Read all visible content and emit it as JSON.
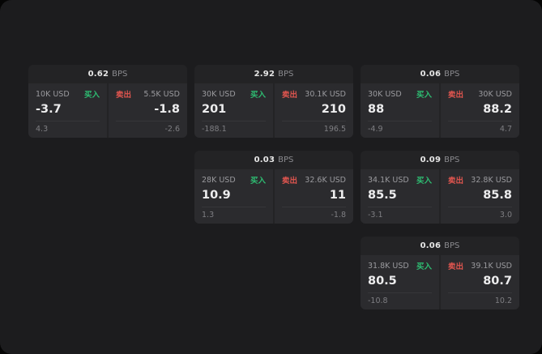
{
  "colors": {
    "buy-green": "#2ebd72",
    "sell-red": "#e0554f"
  },
  "cards": [
    {
      "bps_value": "0.62",
      "bps_unit": "BPS",
      "buy_size": "10K USD",
      "buy_label": "买入",
      "buy_price": "-3.7",
      "buy_sub": "4.3",
      "sell_label": "卖出",
      "sell_size": "5.5K USD",
      "sell_price": "-1.8",
      "sell_sub": "-2.6"
    },
    {
      "bps_value": "2.92",
      "bps_unit": "BPS",
      "buy_size": "30K USD",
      "buy_label": "买入",
      "buy_price": "201",
      "buy_sub": "-188.1",
      "sell_label": "卖出",
      "sell_size": "30.1K USD",
      "sell_price": "210",
      "sell_sub": "196.5"
    },
    {
      "bps_value": "0.06",
      "bps_unit": "BPS",
      "buy_size": "30K USD",
      "buy_label": "买入",
      "buy_price": "88",
      "buy_sub": "-4.9",
      "sell_label": "卖出",
      "sell_size": "30K USD",
      "sell_price": "88.2",
      "sell_sub": "4.7"
    },
    {
      "bps_value": "0.03",
      "bps_unit": "BPS",
      "buy_size": "28K USD",
      "buy_label": "买入",
      "buy_price": "10.9",
      "buy_sub": "1.3",
      "sell_label": "卖出",
      "sell_size": "32.6K USD",
      "sell_price": "11",
      "sell_sub": "-1.8"
    },
    {
      "bps_value": "0.09",
      "bps_unit": "BPS",
      "buy_size": "34.1K USD",
      "buy_label": "买入",
      "buy_price": "85.5",
      "buy_sub": "-3.1",
      "sell_label": "卖出",
      "sell_size": "32.8K USD",
      "sell_price": "85.8",
      "sell_sub": "3.0"
    },
    {
      "bps_value": "0.06",
      "bps_unit": "BPS",
      "buy_size": "31.8K USD",
      "buy_label": "买入",
      "buy_price": "80.5",
      "buy_sub": "-10.8",
      "sell_label": "卖出",
      "sell_size": "39.1K USD",
      "sell_price": "80.7",
      "sell_sub": "10.2"
    }
  ]
}
